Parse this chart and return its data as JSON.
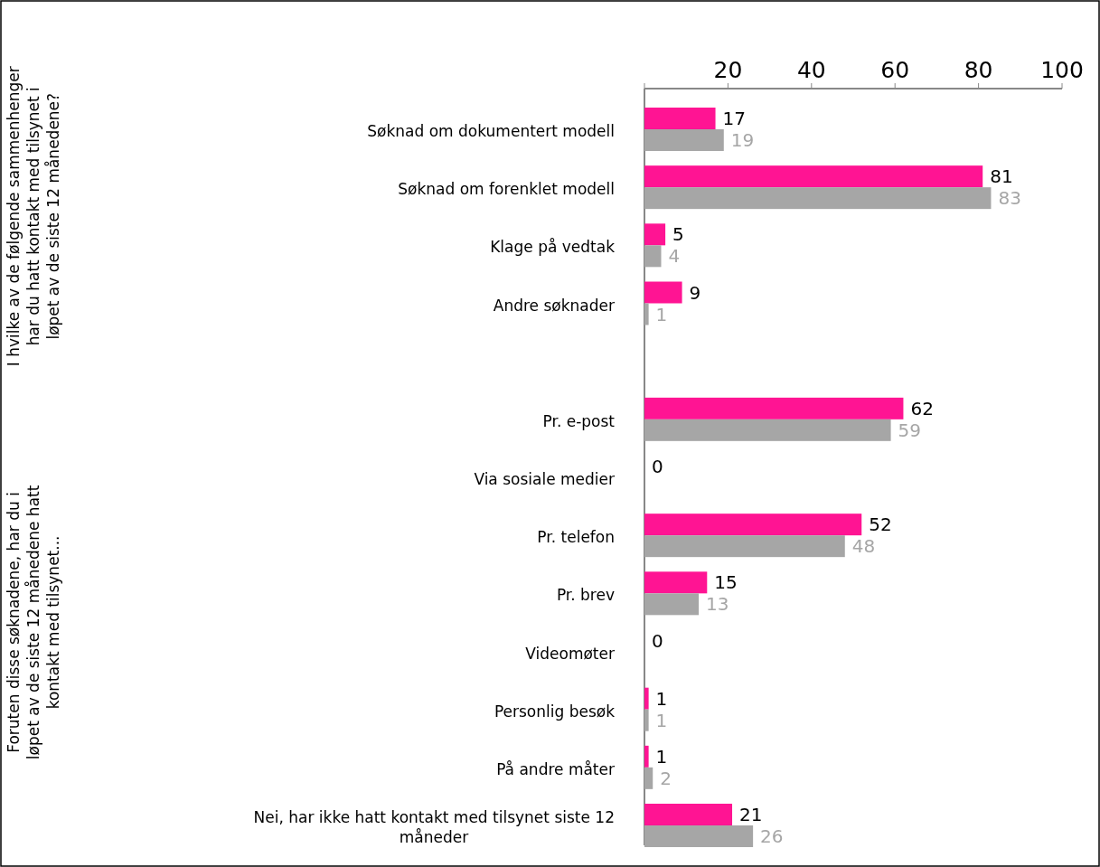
{
  "chart_data": {
    "type": "bar",
    "orientation": "horizontal",
    "categories": [
      "Søknad om dokumentert modell",
      "Søknad om forenklet modell",
      "Klage på vedtak",
      "Andre søknader",
      null,
      "Pr. e-post",
      "Via sosiale medier",
      "Pr. telefon",
      "Pr. brev",
      "Videomøter",
      "Personlig besøk",
      "På andre måter",
      "Nei, har ikke hatt kontakt med tilsynet siste 12 måneder"
    ],
    "series": [
      {
        "color": "#ff1493",
        "values": [
          17,
          81,
          5,
          9,
          null,
          62,
          0,
          52,
          15,
          0,
          1,
          1,
          21
        ]
      },
      {
        "color": "#a6a6a6",
        "values": [
          19,
          83,
          4,
          1,
          null,
          59,
          null,
          48,
          13,
          null,
          1,
          2,
          26
        ]
      }
    ],
    "xlim": [
      0,
      100
    ],
    "xticks": [
      {
        "value": 0,
        "label": null
      },
      20,
      40,
      60,
      80,
      100
    ],
    "data_labels": true,
    "grid": false,
    "annotations": [
      "I hvilke av de følgende sammenhenger har du hatt kontakt med tilsynet i løpet av de siste 12 månedene?",
      "Foruten disse søknadene, har du i løpet av de siste 12 månedene hatt kontakt med tilsynet..."
    ]
  }
}
